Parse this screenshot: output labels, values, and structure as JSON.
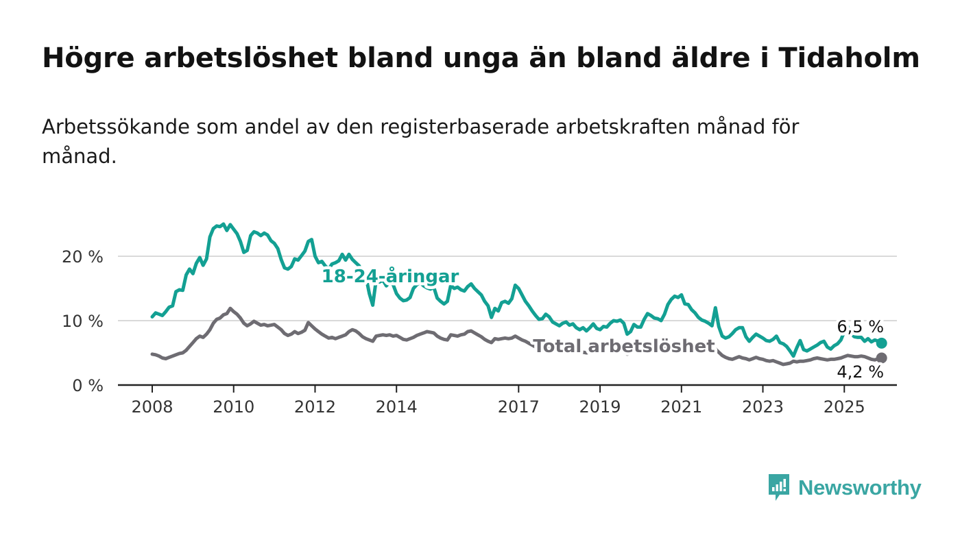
{
  "title": "Högre arbetslöshet bland unga än bland äldre i Tidaholm",
  "subtitle": "Arbetssökande som andel av den registerbaserade arbetskraften månad för månad.",
  "brand": {
    "name": "Newsworthy",
    "icon": "newsworthy-bar-chart-logo-icon"
  },
  "colors": {
    "young": "#13a093",
    "total": "#6e6c72",
    "axis": "#222222",
    "grid": "#d9d9d9",
    "brand": "#3aa6a3"
  },
  "chart_data": {
    "type": "line",
    "x_start": "2008-01",
    "x_end": "2025-06",
    "x_step": "month",
    "ylim": [
      0,
      25
    ],
    "grid": true,
    "y_ticks": [
      {
        "value": 0,
        "label": "0 %"
      },
      {
        "value": 10,
        "label": "10 %"
      },
      {
        "value": 20,
        "label": "20 %"
      }
    ],
    "x_ticks": [
      {
        "date": "2008-01",
        "label": "2008"
      },
      {
        "date": "2010-01",
        "label": "2010"
      },
      {
        "date": "2012-01",
        "label": "2012"
      },
      {
        "date": "2014-01",
        "label": "2014"
      },
      {
        "date": "2017-01",
        "label": "2017"
      },
      {
        "date": "2019-01",
        "label": "2019"
      },
      {
        "date": "2021-01",
        "label": "2021"
      },
      {
        "date": "2023-01",
        "label": "2023"
      },
      {
        "date": "2025-01",
        "label": "2025"
      }
    ],
    "series": [
      {
        "name": "18-24-åringar",
        "end_label": "6,5 %",
        "values": [
          10.6,
          11.2,
          11.0,
          10.8,
          11.4,
          12.1,
          12.3,
          14.5,
          14.8,
          14.7,
          17.1,
          18.0,
          17.3,
          18.9,
          19.8,
          18.6,
          19.6,
          23.0,
          24.3,
          24.7,
          24.6,
          25.0,
          24.0,
          24.9,
          24.2,
          23.5,
          22.3,
          20.6,
          20.9,
          23.2,
          23.8,
          23.6,
          23.2,
          23.6,
          23.3,
          22.4,
          22.0,
          21.2,
          19.5,
          18.2,
          18.0,
          18.4,
          19.6,
          19.4,
          20.1,
          20.8,
          22.3,
          22.6,
          20.0,
          19.0,
          19.2,
          18.5,
          18.0,
          18.8,
          19.0,
          19.3,
          20.3,
          19.4,
          20.3,
          19.5,
          19.0,
          18.5,
          17.5,
          16.8,
          14.2,
          12.4,
          16.3,
          16.0,
          16.3,
          15.4,
          16.0,
          15.6,
          14.2,
          13.5,
          13.1,
          13.2,
          13.6,
          15.0,
          15.6,
          15.9,
          15.4,
          15.1,
          14.9,
          15.2,
          13.5,
          13.0,
          12.6,
          13.0,
          15.5,
          15.0,
          15.2,
          14.8,
          14.6,
          15.3,
          15.7,
          15.0,
          14.5,
          14.0,
          13.0,
          12.3,
          10.5,
          11.9,
          11.5,
          12.8,
          13.0,
          12.7,
          13.4,
          15.5,
          15.0,
          14.0,
          13.0,
          12.3,
          11.5,
          10.8,
          10.2,
          10.3,
          11.0,
          10.6,
          9.8,
          9.5,
          9.2,
          9.6,
          9.8,
          9.3,
          9.5,
          8.9,
          8.6,
          8.9,
          8.4,
          8.9,
          9.5,
          8.8,
          8.6,
          9.1,
          9.0,
          9.6,
          10.0,
          9.9,
          10.1,
          9.6,
          7.9,
          8.3,
          9.4,
          9.0,
          9.0,
          10.2,
          11.1,
          10.8,
          10.4,
          10.3,
          10.0,
          11.0,
          12.5,
          13.3,
          13.8,
          13.6,
          14.0,
          12.6,
          12.5,
          11.7,
          11.2,
          10.5,
          10.1,
          9.9,
          9.6,
          9.2,
          12.0,
          9.1,
          7.6,
          7.3,
          7.5,
          8.0,
          8.6,
          8.9,
          8.9,
          7.5,
          6.8,
          7.4,
          7.9,
          7.6,
          7.3,
          6.9,
          6.8,
          7.1,
          7.6,
          6.6,
          6.4,
          6.0,
          5.3,
          4.5,
          5.8,
          6.9,
          5.5,
          5.3,
          5.6,
          5.9,
          6.2,
          6.6,
          6.8,
          5.9,
          5.6,
          6.1,
          6.4,
          7.0,
          8.3,
          9.1,
          7.9,
          7.5,
          7.4,
          7.4,
          6.8,
          7.2,
          6.7,
          7.0,
          6.8,
          6.5
        ]
      },
      {
        "name": "Total arbetslöshet",
        "end_label": "4,2 %",
        "values": [
          4.8,
          4.7,
          4.5,
          4.2,
          4.1,
          4.3,
          4.5,
          4.7,
          4.9,
          5.0,
          5.4,
          6.0,
          6.6,
          7.2,
          7.6,
          7.4,
          7.9,
          8.6,
          9.6,
          10.2,
          10.4,
          10.9,
          11.1,
          11.9,
          11.4,
          11.0,
          10.4,
          9.6,
          9.2,
          9.5,
          9.9,
          9.6,
          9.3,
          9.4,
          9.2,
          9.3,
          9.4,
          9.0,
          8.6,
          8.0,
          7.7,
          7.9,
          8.3,
          8.0,
          8.2,
          8.5,
          9.7,
          9.2,
          8.7,
          8.3,
          7.9,
          7.6,
          7.3,
          7.4,
          7.2,
          7.4,
          7.6,
          7.8,
          8.3,
          8.6,
          8.4,
          8.0,
          7.5,
          7.2,
          7.0,
          6.8,
          7.6,
          7.7,
          7.8,
          7.7,
          7.8,
          7.6,
          7.7,
          7.4,
          7.1,
          7.0,
          7.2,
          7.4,
          7.7,
          7.9,
          8.1,
          8.3,
          8.2,
          8.1,
          7.6,
          7.3,
          7.1,
          7.0,
          7.8,
          7.7,
          7.6,
          7.8,
          7.9,
          8.3,
          8.4,
          8.1,
          7.8,
          7.5,
          7.1,
          6.8,
          6.6,
          7.2,
          7.1,
          7.2,
          7.3,
          7.2,
          7.3,
          7.6,
          7.3,
          7.0,
          6.8,
          6.5,
          6.2,
          5.9,
          5.6,
          5.5,
          5.7,
          5.6,
          5.5,
          5.4,
          5.3,
          5.4,
          5.5,
          5.3,
          5.3,
          5.2,
          5.2,
          5.1,
          5.0,
          5.1,
          5.3,
          5.2,
          5.1,
          5.2,
          5.2,
          5.3,
          5.3,
          5.2,
          5.4,
          5.2,
          4.8,
          5.0,
          5.4,
          5.3,
          5.2,
          5.6,
          5.9,
          5.8,
          5.8,
          5.6,
          5.5,
          5.8,
          6.2,
          6.5,
          6.6,
          6.5,
          6.6,
          6.3,
          6.2,
          6.0,
          5.8,
          5.6,
          5.4,
          5.3,
          5.2,
          5.1,
          5.6,
          5.1,
          4.6,
          4.3,
          4.1,
          4.0,
          4.2,
          4.4,
          4.2,
          4.1,
          3.9,
          4.1,
          4.3,
          4.1,
          4.0,
          3.8,
          3.7,
          3.8,
          3.6,
          3.4,
          3.2,
          3.3,
          3.4,
          3.7,
          3.6,
          3.7,
          3.7,
          3.8,
          3.9,
          4.1,
          4.2,
          4.1,
          4.0,
          3.9,
          4.0,
          4.0,
          4.1,
          4.2,
          4.4,
          4.6,
          4.5,
          4.4,
          4.4,
          4.5,
          4.4,
          4.2,
          4.0,
          3.9,
          4.1,
          4.2
        ]
      }
    ]
  }
}
